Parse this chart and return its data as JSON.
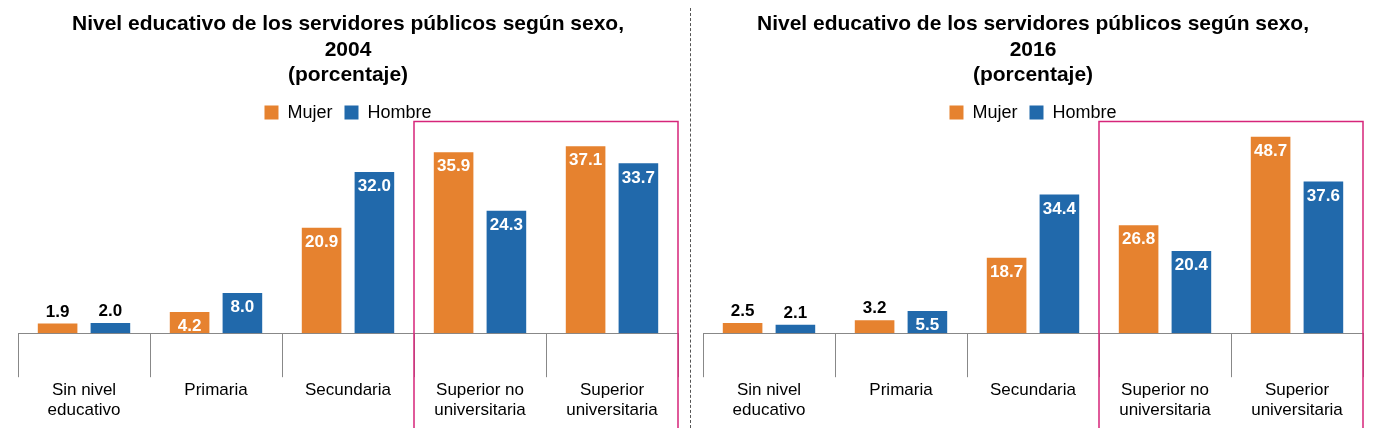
{
  "chart_data": [
    {
      "type": "bar",
      "title": "Nivel educativo de los servidores públicos según sexo, 2004",
      "subtitle": "(porcentaje)",
      "categories": [
        "Sin nivel educativo",
        "Primaria",
        "Secundaria",
        "Superior no universitaria",
        "Superior universitaria"
      ],
      "series": [
        {
          "name": "Mujer",
          "color": "#e6822f",
          "values": [
            1.9,
            4.2,
            20.9,
            35.9,
            37.1
          ],
          "value_labels": [
            "1.9",
            "4.2",
            "20.9",
            "35.9",
            "37.1"
          ]
        },
        {
          "name": "Hombre",
          "color": "#2169ab",
          "values": [
            2.0,
            8.0,
            32.0,
            24.3,
            33.7
          ],
          "value_labels": [
            "2.0",
            "8.0",
            "32.0",
            "24.3",
            "33.7"
          ]
        }
      ],
      "legend": "top",
      "grid": false,
      "tick_labels": "x"
    },
    {
      "type": "bar",
      "title": "Nivel educativo de los servidores públicos según sexo, 2016",
      "subtitle": "(porcentaje)",
      "categories": [
        "Sin nivel educativo",
        "Primaria",
        "Secundaria",
        "Superior no universitaria",
        "Superior universitaria"
      ],
      "series": [
        {
          "name": "Mujer",
          "color": "#e6822f",
          "values": [
            2.5,
            3.2,
            18.7,
            26.8,
            48.7
          ],
          "value_labels": [
            "2.5",
            "3.2",
            "18.7",
            "26.8",
            "48.7"
          ]
        },
        {
          "name": "Hombre",
          "color": "#2169ab",
          "values": [
            2.1,
            5.5,
            34.4,
            20.4,
            37.6
          ],
          "value_labels": [
            "2.1",
            "5.5",
            "34.4",
            "20.4",
            "37.6"
          ]
        }
      ],
      "legend": "top",
      "grid": false,
      "tick_labels": "x"
    }
  ]
}
